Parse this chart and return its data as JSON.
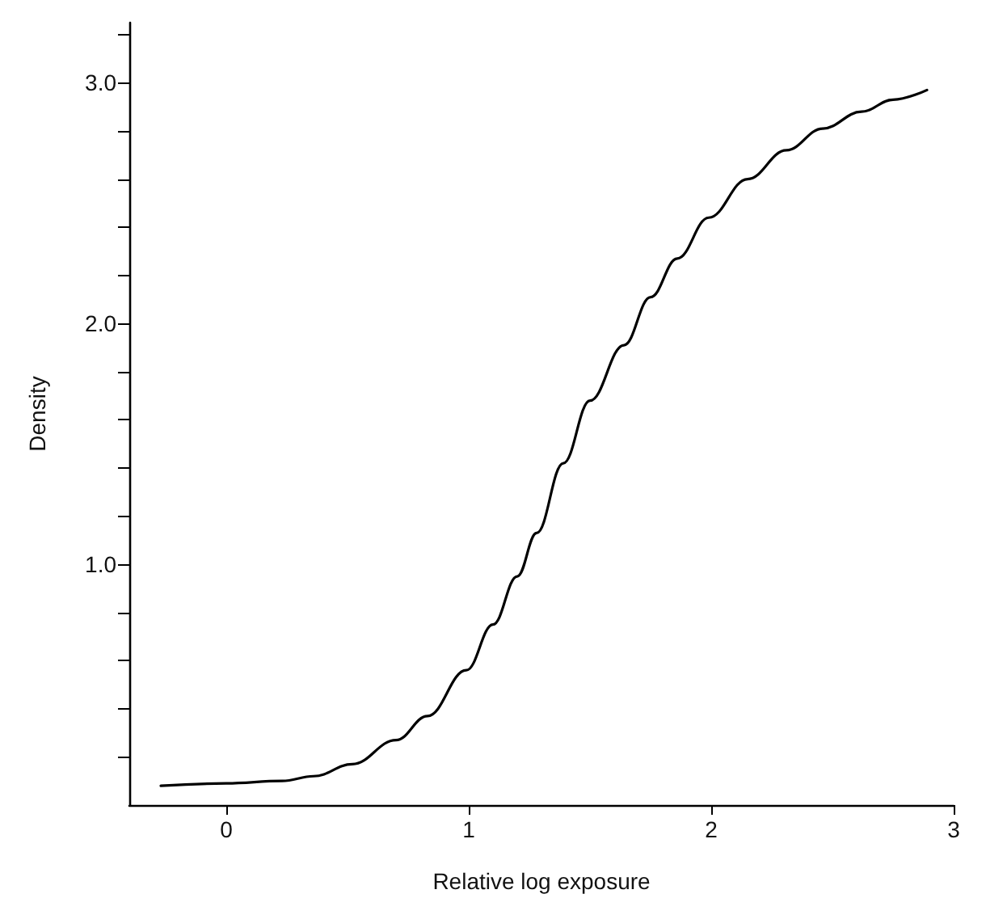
{
  "chart_data": {
    "type": "line",
    "xlabel": "Relative log exposure",
    "ylabel": "Density",
    "x": [
      -0.27,
      0,
      0.23,
      0.36,
      0.52,
      0.7,
      0.83,
      0.99,
      1.1,
      1.2,
      1.28,
      1.39,
      1.5,
      1.64,
      1.75,
      1.86,
      1.99,
      2.15,
      2.31,
      2.46,
      2.62,
      2.75,
      2.89
    ],
    "series": [
      {
        "color": "#000000",
        "values": [
          0.08,
          0.09,
          0.1,
          0.12,
          0.17,
          0.27,
          0.37,
          0.56,
          0.75,
          0.95,
          1.13,
          1.42,
          1.68,
          1.91,
          2.11,
          2.27,
          2.44,
          2.6,
          2.72,
          2.81,
          2.88,
          2.93,
          2.97
        ]
      }
    ],
    "xlim": [
      -0.4,
      3
    ],
    "xticks": [
      0,
      1,
      2,
      3
    ],
    "ylim": [
      0,
      3.25
    ],
    "yticks": [
      {
        "value": 0.2,
        "label": null
      },
      {
        "value": 0.4,
        "label": null
      },
      {
        "value": 0.6,
        "label": null
      },
      {
        "value": 0.8,
        "label": null
      },
      {
        "value": 1,
        "label": "1.0"
      },
      {
        "value": 1.2,
        "label": null
      },
      {
        "value": 1.4,
        "label": null
      },
      {
        "value": 1.6,
        "label": null
      },
      {
        "value": 1.8,
        "label": null
      },
      {
        "value": 2,
        "label": "2.0"
      },
      {
        "value": 2.2,
        "label": null
      },
      {
        "value": 2.4,
        "label": null
      },
      {
        "value": 2.6,
        "label": null
      },
      {
        "value": 2.8,
        "label": null
      },
      {
        "value": 3,
        "label": "3.0"
      },
      {
        "value": 3.2,
        "label": null
      }
    ],
    "grid": false,
    "marker": "none",
    "line_style": "solid"
  }
}
